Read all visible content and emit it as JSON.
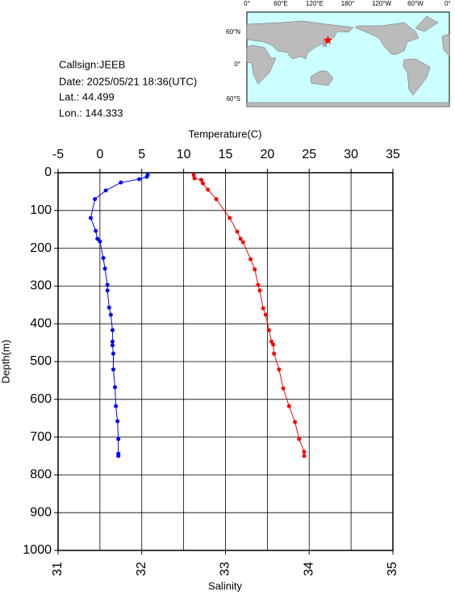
{
  "station": {
    "lines": [
      "Callsign:JEEB",
      "Date:  2025/05/21 18:36(UTC)",
      "Lat.:  44.499",
      "Lon.:  144.333"
    ]
  },
  "map": {
    "lon_labels": [
      "0°",
      "60°E",
      "120°E",
      "180°",
      "120°W",
      "60°W",
      "0°"
    ],
    "lat_labels": [
      "60°N",
      "0°",
      "60°S"
    ]
  },
  "chart_data": {
    "type": "profile",
    "x_label": "Temperature(C)",
    "x2_label": "Salinity",
    "y_label": "Depth(m)",
    "xlim": [
      -5,
      35
    ],
    "xticks": [
      -5,
      0,
      5,
      10,
      15,
      20,
      25,
      30,
      35
    ],
    "x2lim": [
      31,
      35
    ],
    "x2ticks": [
      31,
      32,
      33,
      34,
      35
    ],
    "ylim": [
      0,
      1000
    ],
    "yticks": [
      0,
      100,
      200,
      300,
      400,
      500,
      600,
      700,
      800,
      900,
      1000
    ],
    "y_inverted": true,
    "grid": true,
    "series": [
      {
        "color": "#0000ff",
        "axis": "x",
        "depth": [
          6,
          11,
          17,
          26,
          47,
          70,
          120,
          154,
          175,
          182,
          226,
          254,
          297,
          312,
          357,
          376,
          417,
          447,
          457,
          479,
          521,
          568,
          618,
          658,
          705,
          744,
          750
        ],
        "values": [
          5.7,
          5.6,
          4.7,
          2.5,
          0.7,
          -0.6,
          -1.1,
          -0.5,
          -0.3,
          0,
          0.4,
          0.6,
          0.9,
          0.9,
          1.1,
          1.3,
          1.5,
          1.5,
          1.5,
          1.6,
          1.6,
          1.8,
          1.9,
          2.1,
          2.2,
          2.2,
          2.2
        ]
      },
      {
        "color": "#ff0000",
        "axis": "x2",
        "depth": [
          6,
          15,
          19,
          28,
          45,
          70,
          120,
          156,
          175,
          184,
          229,
          256,
          297,
          312,
          359,
          376,
          417,
          447,
          455,
          479,
          521,
          571,
          618,
          660,
          705,
          739,
          750
        ],
        "values": [
          32.62,
          32.63,
          32.71,
          32.73,
          32.79,
          32.89,
          33.05,
          33.14,
          33.18,
          33.21,
          33.3,
          33.35,
          33.39,
          33.41,
          33.45,
          33.48,
          33.52,
          33.55,
          33.57,
          33.58,
          33.64,
          33.69,
          33.76,
          33.83,
          33.88,
          33.94,
          33.94
        ]
      }
    ]
  }
}
